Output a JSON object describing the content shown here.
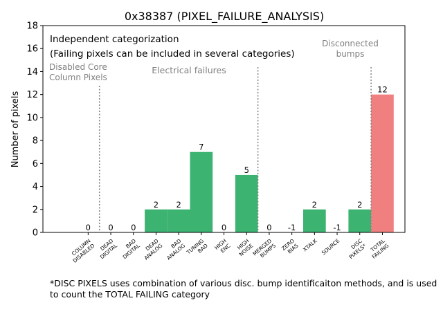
{
  "chart_data": {
    "type": "bar",
    "title": "0x38387 (PIXEL_FAILURE_ANALYSIS)",
    "xlabel": "",
    "ylabel": "Number of pixels",
    "ylim": [
      0,
      18
    ],
    "yticks": [
      0,
      2,
      4,
      6,
      8,
      10,
      12,
      14,
      16,
      18
    ],
    "grid": false,
    "categories": [
      "COLUMN\nDISABLED",
      "DEAD\nDIGITAL",
      "BAD\nDIGITAL",
      "DEAD\nANALOG",
      "BAD\nANALOG",
      "TUNING\nBAD",
      "HIGH\nENC",
      "HIGH\nNOISE",
      "MERGED\nBUMPS",
      "ZERO\nBIAS",
      "XTALK",
      "SOURCE",
      "DISC\nPIXELS*",
      "TOTAL\nFAILING"
    ],
    "values": [
      0,
      0,
      0,
      2,
      2,
      7,
      0,
      5,
      0,
      -1,
      2,
      -1,
      2,
      12
    ],
    "value_labels": [
      "0",
      "0",
      "0",
      "2",
      "2",
      "7",
      "0",
      "5",
      "0",
      "-1",
      "2",
      "-1",
      "2",
      "12"
    ],
    "colors": {
      "normal": "#3cb371",
      "total": "#f08080",
      "divider": "#808080",
      "annotation": "#808080"
    },
    "annotations": {
      "header_line1": "Independent categorization",
      "header_line2": "(Failing pixels can be included in several categories)",
      "disabled_group": "Disabled Core\nColumn Pixels",
      "electrical_group": "Electrical failures",
      "disconnected_group": "Disconnected\nbumps"
    }
  },
  "footnote": "*DISC PIXELS uses combination of various disc. bump identificaiton methods, and is used\nto count the TOTAL FAILING category"
}
